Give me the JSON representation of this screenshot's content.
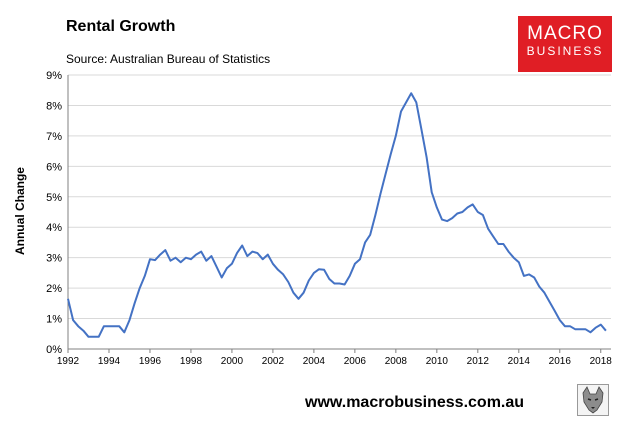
{
  "header": {
    "title": "Rental Growth",
    "source": "Source: Australian Bureau of Statistics"
  },
  "logo": {
    "line1": "MACRO",
    "line2": "BUSINESS",
    "color": "#e01e25"
  },
  "footer": {
    "url": "www.macrobusiness.com.au",
    "icon": "wolf-icon"
  },
  "chart_data": {
    "type": "line",
    "title": "Rental Growth",
    "xlabel": "",
    "ylabel": "Annual Change",
    "xlim": [
      1992,
      2018.5
    ],
    "ylim": [
      0,
      9
    ],
    "x_ticks": [
      1992,
      1994,
      1996,
      1998,
      2000,
      2002,
      2004,
      2006,
      2008,
      2010,
      2012,
      2014,
      2016,
      2018
    ],
    "y_ticks": [
      0,
      1,
      2,
      3,
      4,
      5,
      6,
      7,
      8,
      9
    ],
    "y_tick_format": "percent",
    "grid": "horizontal",
    "line_color": "#4472c4",
    "series": [
      {
        "x": [
          1992,
          1992.25,
          1992.5,
          1992.75,
          1993,
          1993.25,
          1993.5,
          1993.75,
          1994,
          1994.25,
          1994.5,
          1994.75,
          1995,
          1995.25,
          1995.5,
          1995.75,
          1996,
          1996.25,
          1996.5,
          1996.75,
          1997,
          1997.25,
          1997.5,
          1997.75,
          1998,
          1998.25,
          1998.5,
          1998.75,
          1999,
          1999.25,
          1999.5,
          1999.75,
          2000,
          2000.25,
          2000.5,
          2000.75,
          2001,
          2001.25,
          2001.5,
          2001.75,
          2002,
          2002.25,
          2002.5,
          2002.75,
          2003,
          2003.25,
          2003.5,
          2003.75,
          2004,
          2004.25,
          2004.5,
          2004.75,
          2005,
          2005.25,
          2005.5,
          2005.75,
          2006,
          2006.25,
          2006.5,
          2006.75,
          2007,
          2007.25,
          2007.5,
          2007.75,
          2008,
          2008.25,
          2008.5,
          2008.75,
          2009,
          2009.25,
          2009.5,
          2009.75,
          2010,
          2010.25,
          2010.5,
          2010.75,
          2011,
          2011.25,
          2011.5,
          2011.75,
          2012,
          2012.25,
          2012.5,
          2012.75,
          2013,
          2013.25,
          2013.5,
          2013.75,
          2014,
          2014.25,
          2014.5,
          2014.75,
          2015,
          2015.25,
          2015.5,
          2015.75,
          2016,
          2016.25,
          2016.5,
          2016.75,
          2017,
          2017.25,
          2017.5,
          2017.75,
          2018,
          2018.25
        ],
        "y": [
          1.65,
          0.95,
          0.75,
          0.6,
          0.4,
          0.4,
          0.4,
          0.75,
          0.75,
          0.75,
          0.75,
          0.55,
          0.95,
          1.5,
          2.0,
          2.4,
          2.95,
          2.92,
          3.1,
          3.25,
          2.9,
          3.0,
          2.85,
          3.0,
          2.95,
          3.1,
          3.2,
          2.9,
          3.05,
          2.7,
          2.35,
          2.65,
          2.8,
          3.15,
          3.4,
          3.05,
          3.2,
          3.15,
          2.95,
          3.1,
          2.8,
          2.6,
          2.45,
          2.2,
          1.85,
          1.65,
          1.85,
          2.25,
          2.5,
          2.62,
          2.6,
          2.3,
          2.15,
          2.15,
          2.12,
          2.4,
          2.8,
          2.95,
          3.5,
          3.75,
          4.4,
          5.1,
          5.75,
          6.4,
          7.0,
          7.8,
          8.1,
          8.4,
          8.1,
          7.2,
          6.3,
          5.15,
          4.65,
          4.25,
          4.2,
          4.3,
          4.45,
          4.5,
          4.65,
          4.75,
          4.5,
          4.4,
          3.95,
          3.7,
          3.45,
          3.45,
          3.2,
          3.0,
          2.85,
          2.4,
          2.45,
          2.35,
          2.05,
          1.85,
          1.55,
          1.25,
          0.95,
          0.75,
          0.75,
          0.65,
          0.65,
          0.65,
          0.55,
          0.7,
          0.8,
          0.6
        ]
      }
    ]
  }
}
